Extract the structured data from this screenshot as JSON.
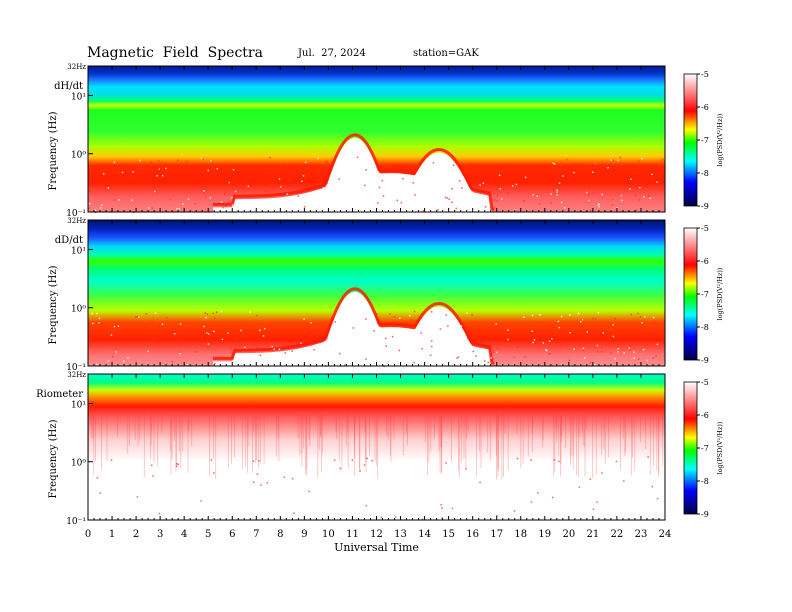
{
  "header": {
    "title": "Magnetic  Field  Spectra",
    "date": "Jul.  27, 2024",
    "station": "station=GAK"
  },
  "chart_data": [
    {
      "type": "heatmap",
      "panel": "dH/dt",
      "ylabel": "Frequency  (Hz)",
      "y_top_label": "32Hz",
      "y_ticks": [
        "10¹",
        "10⁰",
        "10⁻¹"
      ],
      "colorbar_label": "log(PSD(V²/Hz))",
      "colorbar_ticks": [
        "-5",
        "-6",
        "-7",
        "-8",
        "-9"
      ],
      "zlim": [
        -9,
        -5
      ],
      "ylim": [
        0.1,
        32
      ],
      "xlim": [
        0,
        24
      ],
      "yscale": "log",
      "ridge_peaks_hz": [
        [
          11.1,
          2.4
        ],
        [
          14.6,
          1.3
        ]
      ]
    },
    {
      "type": "heatmap",
      "panel": "dD/dt",
      "ylabel": "Frequency  (Hz)",
      "y_top_label": "32Hz",
      "y_ticks": [
        "10¹",
        "10⁰",
        "10⁻¹"
      ],
      "colorbar_label": "log(PSD(V²/Hz))",
      "colorbar_ticks": [
        "-5",
        "-6",
        "-7",
        "-8",
        "-9"
      ],
      "zlim": [
        -9,
        -5
      ],
      "ylim": [
        0.1,
        32
      ],
      "xlim": [
        0,
        24
      ],
      "yscale": "log",
      "ridge_peaks_hz": [
        [
          11.1,
          2.4
        ],
        [
          14.6,
          1.3
        ]
      ]
    },
    {
      "type": "heatmap",
      "panel": "Riometer",
      "ylabel": "Frequency  (Hz)",
      "y_top_label": "32Hz",
      "y_ticks": [
        "10¹",
        "10⁰",
        "10⁻¹"
      ],
      "colorbar_label": "log(PSD(V²/Hz))",
      "colorbar_ticks": [
        "-5",
        "-6",
        "-7",
        "-8",
        "-9"
      ],
      "zlim": [
        -9,
        -5
      ],
      "ylim": [
        0.1,
        32
      ],
      "xlim": [
        0,
        24
      ],
      "yscale": "log"
    }
  ],
  "xaxis": {
    "label": "Universal Time",
    "ticks": [
      "0",
      "1",
      "2",
      "3",
      "4",
      "5",
      "6",
      "7",
      "8",
      "9",
      "10",
      "11",
      "12",
      "13",
      "14",
      "15",
      "16",
      "17",
      "18",
      "19",
      "20",
      "21",
      "22",
      "23",
      "24"
    ]
  },
  "colors": {
    "scale": [
      "#ffffff",
      "#ff0000",
      "#ffff00",
      "#00ff00",
      "#00ffff",
      "#0000ff",
      "#000066"
    ]
  }
}
